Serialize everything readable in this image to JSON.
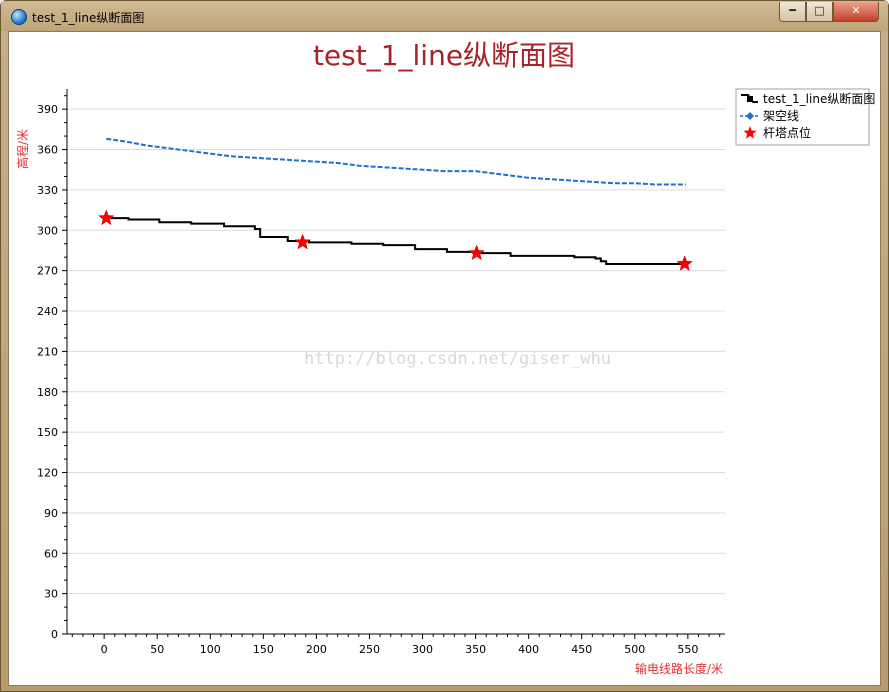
{
  "window": {
    "title": "test_1_line纵断面图",
    "icon": "globe-icon",
    "controls": [
      "minimize-icon",
      "maximize-icon",
      "close-icon"
    ]
  },
  "watermark": "http://blog.csdn.net/giser_whu",
  "chart_data": {
    "type": "line",
    "title": "test_1_line纵断面图",
    "xlabel": "输电线路长度/米",
    "ylabel": "高程/米",
    "xlim": [
      -35,
      585
    ],
    "ylim": [
      0,
      405
    ],
    "xticks": [
      0,
      50,
      100,
      150,
      200,
      250,
      300,
      350,
      400,
      450,
      500,
      550
    ],
    "yticks": [
      0,
      30,
      60,
      90,
      120,
      150,
      180,
      210,
      240,
      270,
      300,
      330,
      360,
      390
    ],
    "grid": "horizontal",
    "legend": "top-right, outside plot",
    "series": [
      {
        "name": "test_1_line纵断面图",
        "style": "step",
        "color": "#000000",
        "x": [
          2,
          23,
          52,
          82,
          113,
          142,
          147,
          173,
          193,
          233,
          263,
          293,
          323,
          348,
          383,
          443,
          463,
          468,
          473,
          548
        ],
        "y": [
          309,
          308,
          306,
          305,
          303,
          301,
          295,
          292,
          291,
          290,
          289,
          286,
          284,
          283,
          281,
          280,
          279,
          277,
          275,
          275
        ]
      },
      {
        "name": "架空线",
        "style": "dashed",
        "color": "#1e6fcf",
        "x": [
          2,
          20,
          40,
          60,
          80,
          100,
          120,
          140,
          160,
          180,
          200,
          220,
          240,
          260,
          280,
          300,
          320,
          340,
          350,
          360,
          380,
          400,
          420,
          440,
          460,
          480,
          500,
          520,
          548
        ],
        "y": [
          368,
          366,
          363,
          361,
          359,
          357,
          355,
          354,
          353,
          352,
          351,
          350,
          348,
          347,
          346,
          345,
          344,
          344,
          344,
          343,
          341,
          339,
          338,
          337,
          336,
          335,
          335,
          334,
          334
        ]
      },
      {
        "name": "杆塔点位",
        "style": "markers",
        "marker": "star",
        "color": "#ff0000",
        "x": [
          2,
          187,
          351,
          547
        ],
        "y": [
          309,
          291,
          283,
          275
        ]
      }
    ]
  }
}
